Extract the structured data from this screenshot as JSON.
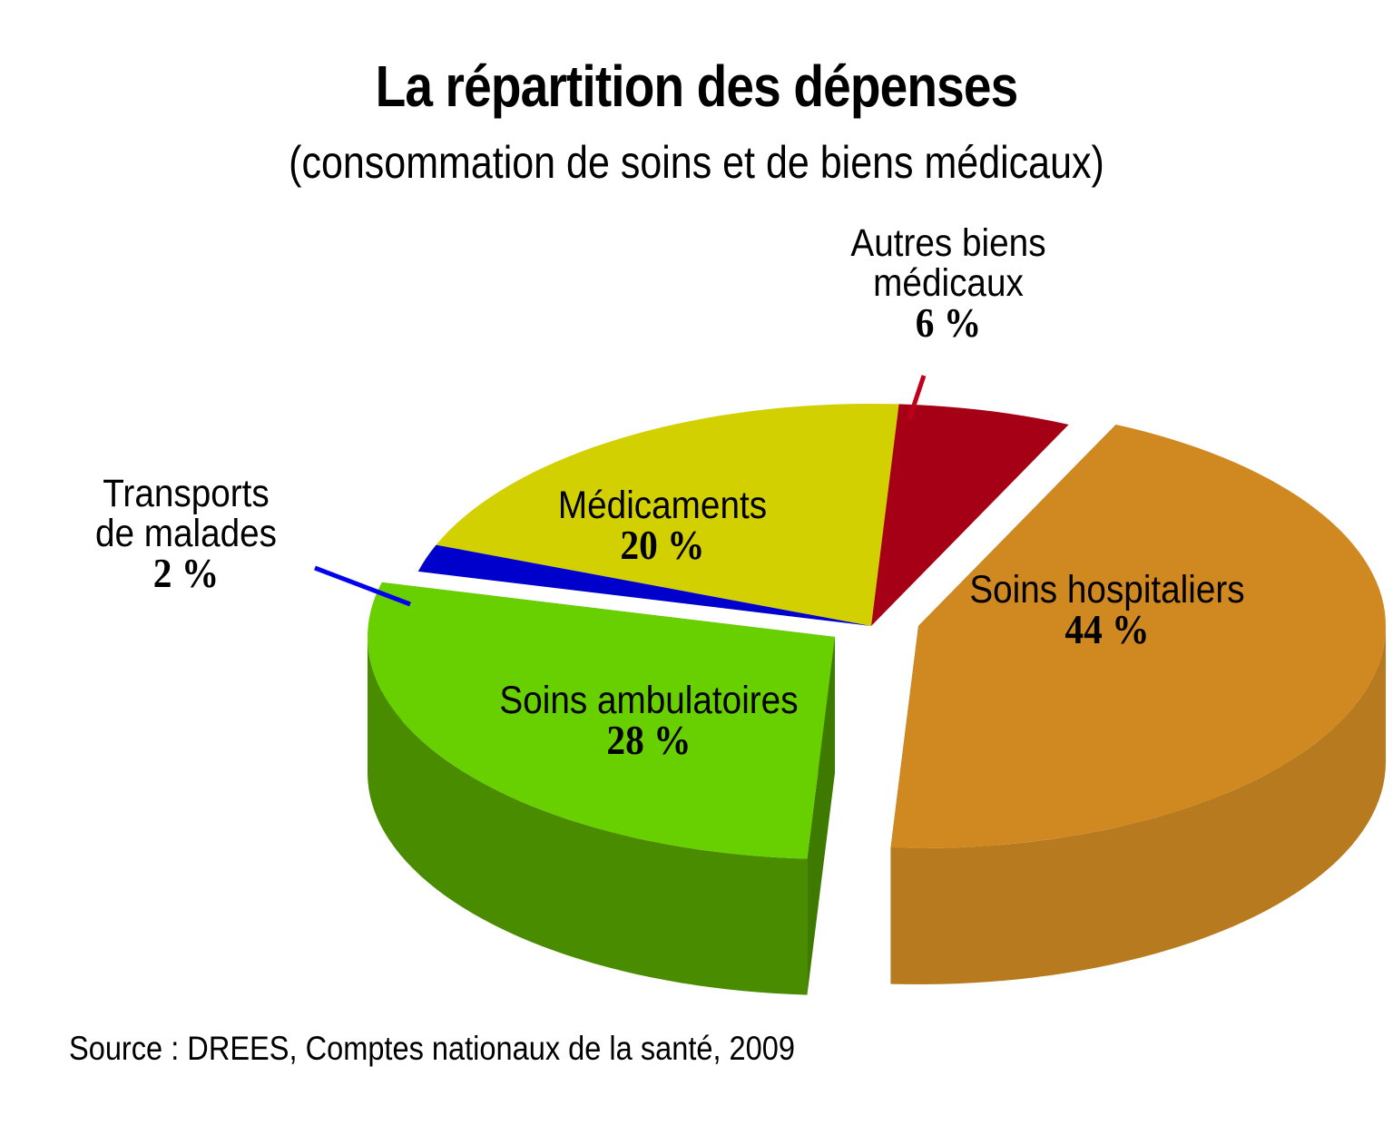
{
  "chart_data": {
    "type": "pie",
    "title": "La répartition des dépenses",
    "subtitle": "(consommation de soins et de biens médicaux)",
    "source": "Source : DREES, Comptes nationaux de la santé, 2009",
    "unit": "%",
    "slices": [
      {
        "label": "Soins hospitaliers",
        "value": 44,
        "value_label": "44 %",
        "color": "#D08820",
        "side_color": "#B87A1E",
        "exploded": true
      },
      {
        "label": "Soins ambulatoires",
        "value": 28,
        "value_label": "28 %",
        "color": "#69D000",
        "side_color": "#4A8C00",
        "exploded": true
      },
      {
        "label": "Transports de malades",
        "label_lines": [
          "Transports",
          "de malades"
        ],
        "value": 2,
        "value_label": "2 %",
        "color": "#0000CC",
        "side_color": "#0000A8",
        "exploded": false
      },
      {
        "label": "Médicaments",
        "value": 20,
        "value_label": "20 %",
        "color": "#D2D000",
        "side_color": "#A8A600",
        "exploded": false
      },
      {
        "label": "Autres biens médicaux",
        "label_lines": [
          "Autres biens",
          "médicaux"
        ],
        "value": 6,
        "value_label": "6 %",
        "color": "#A50015",
        "side_color": "#7E0010",
        "exploded": false
      }
    ]
  }
}
